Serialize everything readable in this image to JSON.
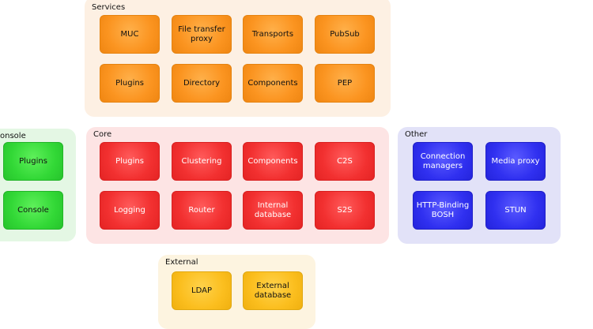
{
  "groups": {
    "services": {
      "title": "Services",
      "items": [
        "MUC",
        "File transfer\nproxy",
        "Transports",
        "PubSub",
        "Plugins",
        "Directory",
        "Components",
        "PEP"
      ]
    },
    "console": {
      "title": "onsole",
      "items": [
        "Plugins",
        "Console"
      ]
    },
    "core": {
      "title": "Core",
      "items": [
        "Plugins",
        "Clustering",
        "Components",
        "C2S",
        "Logging",
        "Router",
        "Internal\ndatabase",
        "S2S"
      ]
    },
    "other": {
      "title": "Other",
      "items": [
        "Connection\nmanagers",
        "Media proxy",
        "HTTP-Binding\nBOSH",
        "STUN"
      ]
    },
    "external": {
      "title": "External",
      "items": [
        "LDAP",
        "External\ndatabase"
      ]
    }
  },
  "colors": {
    "services_bg": "#fdf0e3",
    "core_bg": "#fde4e4",
    "console_bg": "#e4f7e4",
    "other_bg": "#e2e2f8",
    "external_bg": "#fdf4e0",
    "orange": "#fb9420",
    "red": "#f23030",
    "green": "#32d836",
    "blue": "#3030f0",
    "yellow": "#fbbe1e"
  }
}
